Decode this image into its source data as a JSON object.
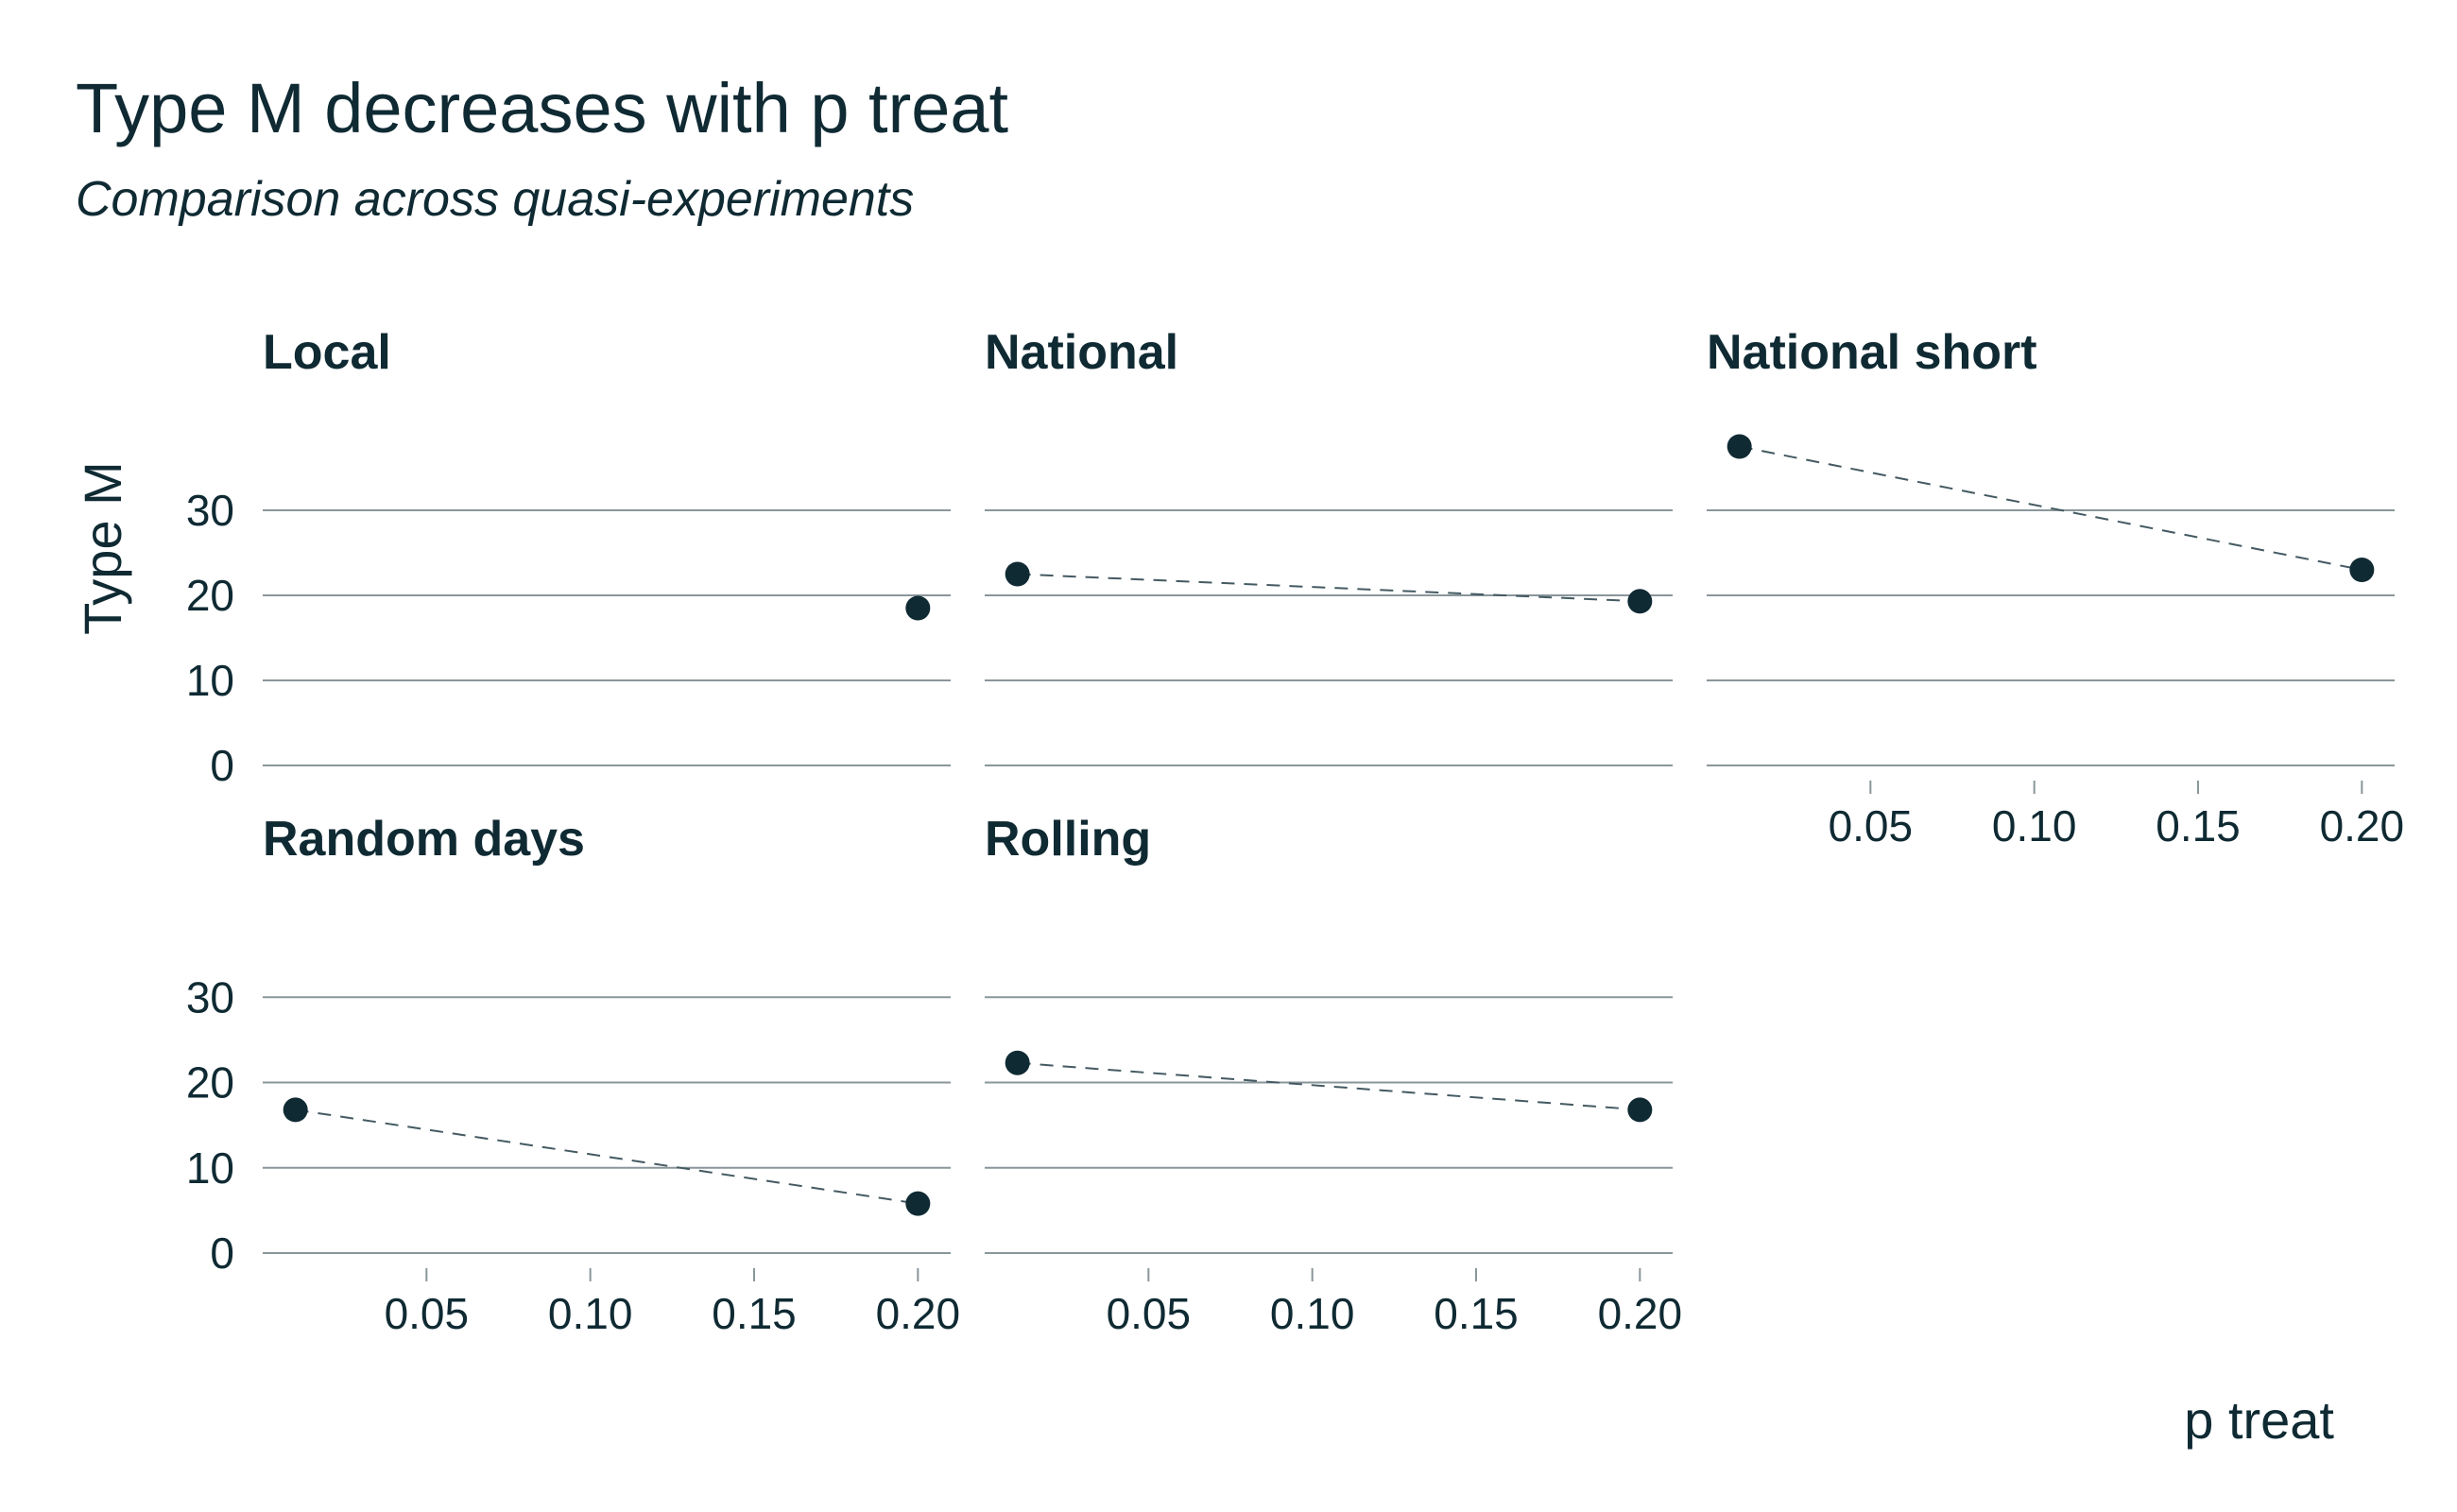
{
  "chart_data": {
    "type": "scatter",
    "title": "Type M decreases with p treat",
    "subtitle": "Comparison across quasi-experiments",
    "xlabel": "p treat",
    "ylabel": "Type M",
    "xlim": [
      0.0,
      0.21
    ],
    "ylim": [
      0,
      40
    ],
    "x_ticks": [
      "0.05",
      "0.10",
      "0.15",
      "0.20"
    ],
    "x_tick_values": [
      0.05,
      0.1,
      0.15,
      0.2
    ],
    "y_ticks": [
      "0",
      "10",
      "20",
      "30"
    ],
    "y_tick_values": [
      0,
      10,
      20,
      30
    ],
    "grid": true,
    "panels": [
      {
        "name": "Local",
        "points": [
          {
            "x": 0.2,
            "y": 18.5
          }
        ],
        "trend": false
      },
      {
        "name": "National",
        "points": [
          {
            "x": 0.01,
            "y": 22.5
          },
          {
            "x": 0.2,
            "y": 19.3
          }
        ],
        "trend": true
      },
      {
        "name": "National short",
        "points": [
          {
            "x": 0.01,
            "y": 37.5
          },
          {
            "x": 0.2,
            "y": 23.0
          }
        ],
        "trend": true
      },
      {
        "name": "Random days",
        "points": [
          {
            "x": 0.01,
            "y": 16.8
          },
          {
            "x": 0.2,
            "y": 5.8
          }
        ],
        "trend": true
      },
      {
        "name": "Rolling",
        "points": [
          {
            "x": 0.01,
            "y": 22.3
          },
          {
            "x": 0.2,
            "y": 16.8
          }
        ],
        "trend": true
      }
    ]
  }
}
